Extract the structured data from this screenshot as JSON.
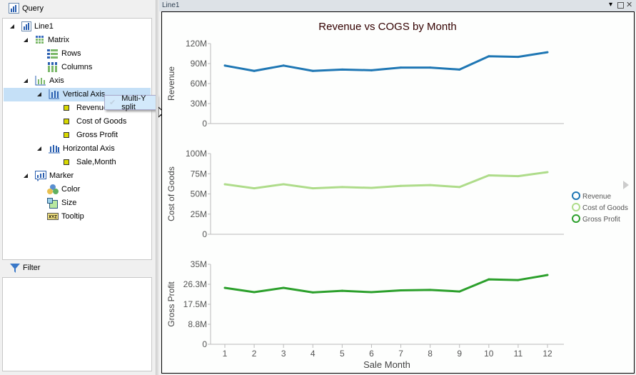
{
  "query_panel": {
    "title": "Query",
    "icon": "bar-chart-icon"
  },
  "tree": {
    "root": "Line1",
    "matrix": "Matrix",
    "rows": "Rows",
    "columns": "Columns",
    "axis": "Axis",
    "vertical_axis": "Vertical Axis",
    "vertical_fields": [
      "Revenue",
      "Cost of Goods",
      "Gross Profit"
    ],
    "horizontal_axis": "Horizontal Axis",
    "horizontal_fields": [
      "Sale,Month"
    ],
    "marker": "Marker",
    "color": "Color",
    "size": "Size",
    "tooltip": "Tooltip"
  },
  "context_menu": {
    "item": "Multi-Y split",
    "checked": true
  },
  "filter_panel": {
    "title": "Filter",
    "icon": "funnel-icon"
  },
  "chart_window": {
    "title": "Line1",
    "controls": [
      "dropdown-icon",
      "maximize-icon",
      "close-icon"
    ]
  },
  "chart_data": {
    "type": "line",
    "title": "Revenue vs COGS by Month",
    "xlabel": "Sale Month",
    "categories": [
      1,
      2,
      3,
      4,
      5,
      6,
      7,
      8,
      9,
      10,
      11,
      12
    ],
    "layout": "multi-y split",
    "legend_position": "right",
    "series": [
      {
        "name": "Revenue",
        "color": "#1f77b4",
        "ylabel": "Revenue",
        "ylim": [
          0,
          120000000
        ],
        "ticks": [
          "0",
          "30M",
          "60M",
          "90M",
          "120M"
        ],
        "tick_values": [
          0,
          30000000,
          60000000,
          90000000,
          120000000
        ],
        "values": [
          87000000,
          79000000,
          87000000,
          79000000,
          81000000,
          80000000,
          84000000,
          84000000,
          81000000,
          101000000,
          100000000,
          107000000
        ]
      },
      {
        "name": "Cost of Goods",
        "color": "#aedc8a",
        "ylabel": "Cost of Goods",
        "ylim": [
          0,
          100000000
        ],
        "ticks": [
          "0",
          "25M",
          "50M",
          "75M",
          "100M"
        ],
        "tick_values": [
          0,
          25000000,
          50000000,
          75000000,
          100000000
        ],
        "values": [
          62000000,
          57000000,
          62000000,
          57000000,
          58500000,
          57500000,
          60000000,
          61000000,
          58500000,
          73000000,
          72000000,
          77000000
        ]
      },
      {
        "name": "Gross Profit",
        "color": "#2ca02c",
        "ylabel": "Gross Profit",
        "ylim": [
          0,
          35000000
        ],
        "ticks": [
          "0",
          "8.8M",
          "17.5M",
          "26.3M",
          "35M"
        ],
        "tick_values": [
          0,
          8750000,
          17500000,
          26250000,
          35000000
        ],
        "values": [
          24700000,
          22800000,
          24700000,
          22700000,
          23400000,
          22800000,
          23600000,
          23800000,
          23100000,
          28400000,
          28100000,
          30300000
        ]
      }
    ]
  }
}
